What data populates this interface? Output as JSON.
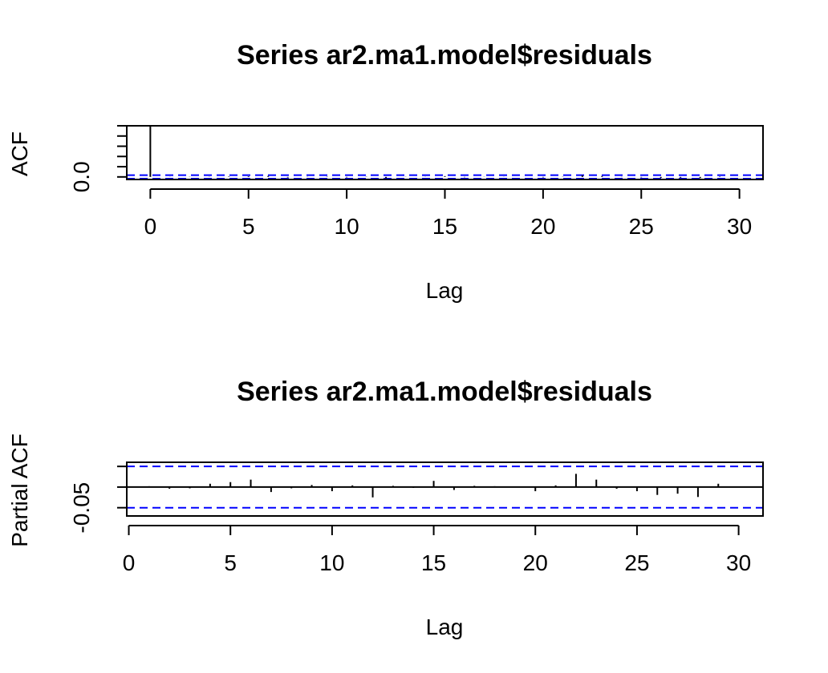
{
  "chart_data": [
    {
      "type": "bar",
      "title": "Series  ar2.ma1.model$residuals",
      "xlabel": "Lag",
      "ylabel": "ACF",
      "xlim": [
        -1.2,
        31.2
      ],
      "ylim": [
        -0.05,
        1.0
      ],
      "x_ticks": [
        0,
        5,
        10,
        15,
        20,
        25,
        30
      ],
      "y_ticks": [
        0.0,
        0.2,
        0.4,
        0.6,
        0.8,
        1.0
      ],
      "y_tick_labels": [
        "0.0"
      ],
      "ci": [
        0.035,
        -0.035
      ],
      "lags": [
        0,
        1,
        2,
        3,
        4,
        5,
        6,
        7,
        8,
        9,
        10,
        11,
        12,
        13,
        14,
        15,
        16,
        17,
        18,
        19,
        20,
        21,
        22,
        23,
        24,
        25,
        26,
        27,
        28,
        29,
        30
      ],
      "values": [
        1.0,
        0.002,
        -0.004,
        -0.003,
        0.008,
        0.012,
        0.018,
        -0.012,
        -0.003,
        0.005,
        -0.01,
        0.004,
        -0.025,
        0.003,
        -0.002,
        0.015,
        -0.007,
        0.003,
        0.002,
        0.001,
        -0.01,
        0.004,
        0.032,
        0.018,
        -0.004,
        -0.01,
        -0.019,
        -0.016,
        -0.024,
        0.008,
        0.001
      ]
    },
    {
      "type": "bar",
      "title": "Series  ar2.ma1.model$residuals",
      "xlabel": "Lag",
      "ylabel": "Partial ACF",
      "xlim": [
        -0.1,
        31.2
      ],
      "ylim": [
        -0.07,
        0.06
      ],
      "x_ticks": [
        0,
        5,
        10,
        15,
        20,
        25,
        30
      ],
      "y_ticks": [
        -0.05,
        0.0,
        0.05
      ],
      "y_tick_labels": [
        "-0.05"
      ],
      "ci": [
        0.05,
        -0.05
      ],
      "lags": [
        1,
        2,
        3,
        4,
        5,
        6,
        7,
        8,
        9,
        10,
        11,
        12,
        13,
        14,
        15,
        16,
        17,
        18,
        19,
        20,
        21,
        22,
        23,
        24,
        25,
        26,
        27,
        28,
        29,
        30
      ],
      "values": [
        0.002,
        -0.004,
        -0.003,
        0.008,
        0.012,
        0.018,
        -0.012,
        -0.003,
        0.005,
        -0.01,
        0.004,
        -0.025,
        0.003,
        -0.002,
        0.015,
        -0.007,
        0.003,
        0.002,
        0.001,
        -0.01,
        0.004,
        0.032,
        0.018,
        -0.004,
        -0.01,
        -0.019,
        -0.016,
        -0.024,
        0.008,
        0.001
      ]
    }
  ]
}
